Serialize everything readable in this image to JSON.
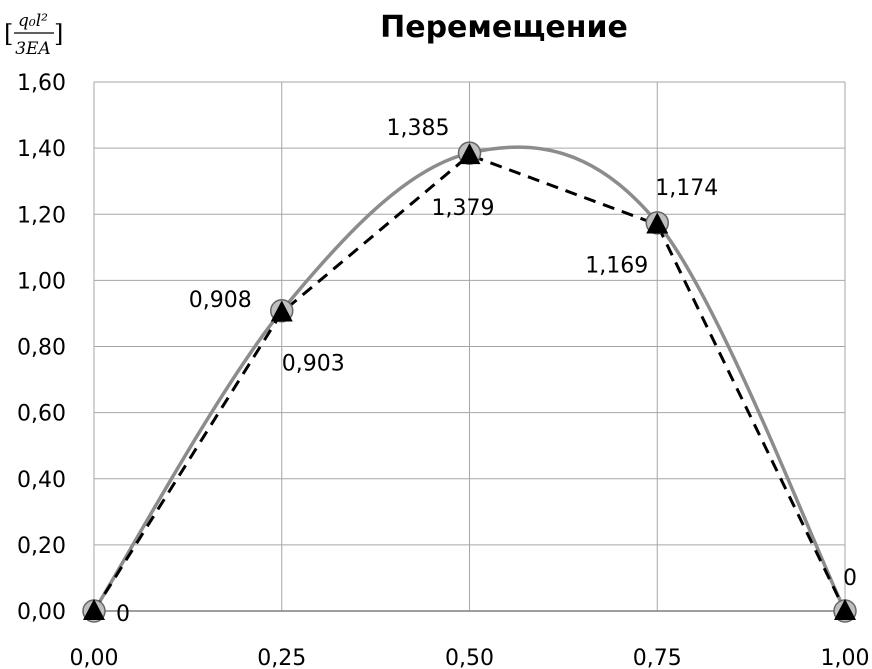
{
  "chart_data": {
    "type": "line",
    "title": "Перемещение",
    "ylabel": {
      "numerator": "q₀l²",
      "denominator": "3EA",
      "open_bracket": "[",
      "close_bracket": "]"
    },
    "xlim": [
      0,
      1
    ],
    "ylim": [
      0,
      1.6
    ],
    "x_ticks": [
      "0,00",
      "0,25",
      "0,50",
      "0,75",
      "1,00"
    ],
    "y_ticks": [
      "0,00",
      "0,20",
      "0,40",
      "0,60",
      "0,80",
      "1,00",
      "1,20",
      "1,40",
      "1,60"
    ],
    "grid": true,
    "legend": "none",
    "series": [
      {
        "style": "solid-curve-circle-markers",
        "color": "#8c8c8c",
        "x": [
          0,
          0.25,
          0.5,
          0.75,
          1
        ],
        "values": [
          0,
          0.908,
          1.385,
          1.174,
          0
        ],
        "labels": [
          "0",
          "0,908",
          "1,385",
          "1,174",
          "0"
        ]
      },
      {
        "style": "dashed-triangle-markers",
        "color": "#000000",
        "x": [
          0,
          0.25,
          0.5,
          0.75,
          1
        ],
        "values": [
          0,
          0.903,
          1.379,
          1.169,
          0
        ],
        "labels": [
          "0,903",
          "1,379",
          "1,169"
        ]
      }
    ]
  }
}
